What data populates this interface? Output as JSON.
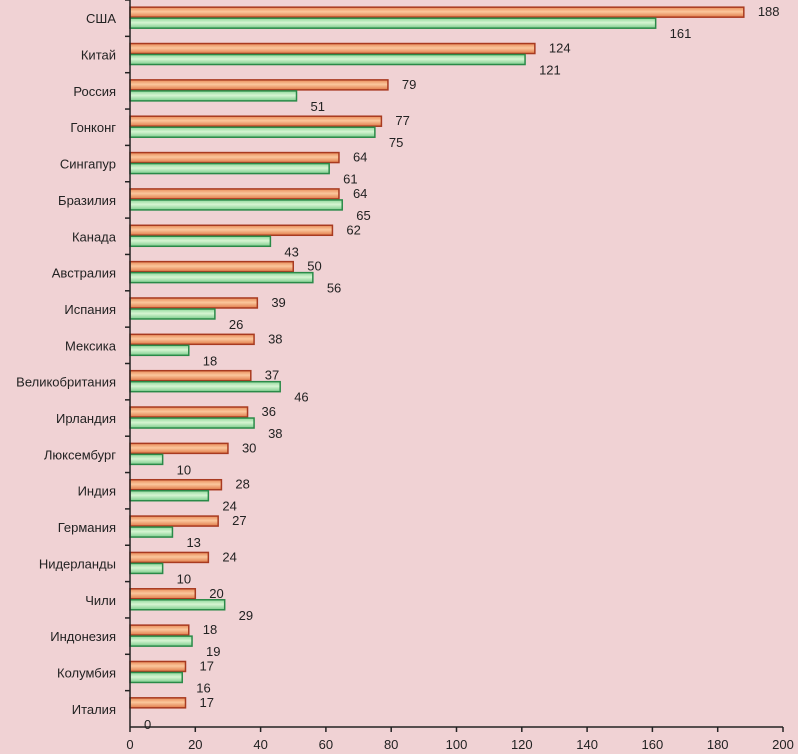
{
  "chart_data": {
    "type": "bar",
    "orientation": "horizontal",
    "title": "",
    "xlabel": "",
    "ylabel": "",
    "xlim": [
      0,
      200
    ],
    "xticks": [
      0,
      20,
      40,
      60,
      80,
      100,
      120,
      140,
      160,
      180,
      200
    ],
    "grid": false,
    "legend": "none",
    "categories": [
      "США",
      "Китай",
      "Россия",
      "Гонконг",
      "Сингапур",
      "Бразилия",
      "Канада",
      "Австралия",
      "Испания",
      "Мексика",
      "Великобритания",
      "Ирландия",
      "Люксембург",
      "Индия",
      "Германия",
      "Нидерланды",
      "Чили",
      "Индонезия",
      "Колумбия",
      "Италия"
    ],
    "series": [
      {
        "name": "series-orange",
        "color": "#f0a070",
        "border": "#a83a20",
        "values": [
          188,
          124,
          79,
          77,
          64,
          64,
          62,
          50,
          39,
          38,
          37,
          36,
          30,
          28,
          27,
          24,
          20,
          18,
          17,
          17
        ]
      },
      {
        "name": "series-green",
        "color": "#b8e8b0",
        "border": "#2a8a48",
        "values": [
          161,
          121,
          51,
          75,
          61,
          65,
          43,
          56,
          26,
          18,
          46,
          38,
          10,
          24,
          13,
          10,
          29,
          19,
          16,
          0
        ]
      }
    ]
  }
}
